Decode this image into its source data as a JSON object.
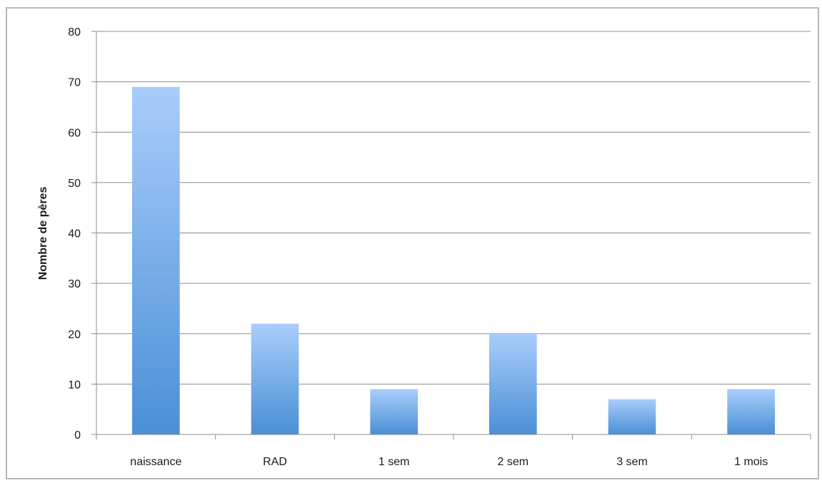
{
  "chart_data": {
    "type": "bar",
    "title": "",
    "xlabel": "",
    "ylabel": "Nombre de pères",
    "categories": [
      "naissance",
      "RAD",
      "1 sem",
      "2 sem",
      "3 sem",
      "1 mois"
    ],
    "values": [
      69,
      22,
      9,
      20,
      7,
      9
    ],
    "ylim": [
      0,
      80
    ],
    "yticks": [
      0,
      10,
      20,
      30,
      40,
      50,
      60,
      70,
      80
    ],
    "grid": true,
    "legend": "none",
    "colors": {
      "bar_top": "#a9cdfb",
      "bar_bottom": "#4a8fd6",
      "grid": "#8c8c8c",
      "axis": "#8c8c8c"
    }
  }
}
